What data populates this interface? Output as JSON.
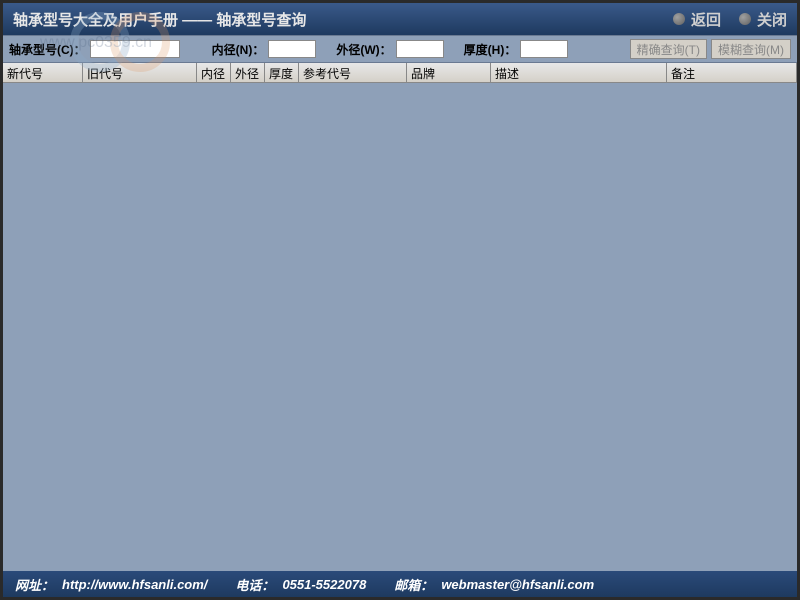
{
  "titlebar": {
    "title": "轴承型号大全及用户手册 —— 轴承型号查询",
    "back_label": "返回",
    "close_label": "关闭"
  },
  "search": {
    "code_label": "轴承型号(C)：",
    "inner_label": "内径(N)：",
    "outer_label": "外径(W)：",
    "thick_label": "厚度(H)：",
    "code_value": "",
    "inner_value": "",
    "outer_value": "",
    "thick_value": "",
    "exact_btn": "精确查询(T)",
    "fuzzy_btn": "模糊查询(M)"
  },
  "table": {
    "columns": {
      "code_new": "新代号",
      "code_old": "旧代号",
      "inner": "内径",
      "outer": "外径",
      "thick": "厚度",
      "ref": "参考代号",
      "brand": "品牌",
      "desc": "描述",
      "remark": "备注"
    },
    "rows": []
  },
  "footer": {
    "url_label": "网址：",
    "url_value": "http://www.hfsanli.com/",
    "tel_label": "电话：",
    "tel_value": "0551-5522078",
    "mail_label": "邮箱：",
    "mail_value": "webmaster@hfsanli.com"
  },
  "watermark": {
    "text": "www.pc0359.cn"
  },
  "colors": {
    "title_bg_top": "#3a5a8a",
    "title_bg_bottom": "#1e3a5f",
    "body_bg": "#8ea0b8",
    "header_bg": "#d4d0c8",
    "border": "#888888",
    "footer_text": "#ffffff"
  }
}
